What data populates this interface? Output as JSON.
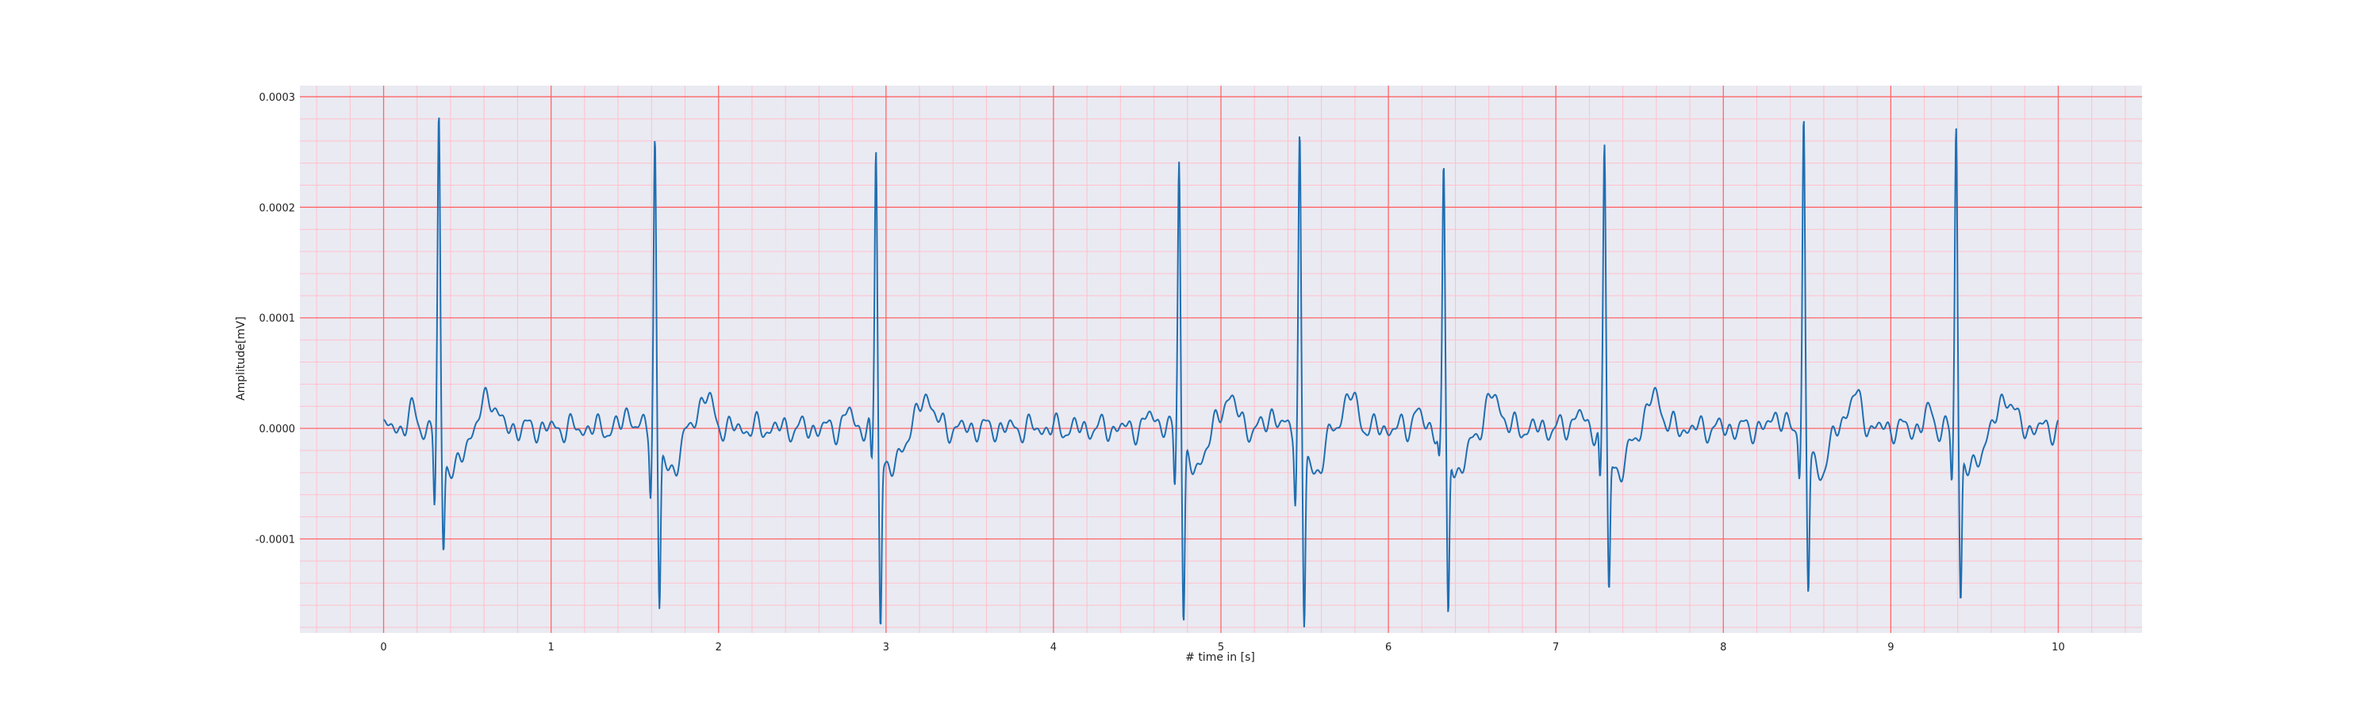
{
  "chart_data": {
    "type": "line",
    "title": "",
    "xlabel": "# time in [s]",
    "ylabel": "Amplitude[mV]",
    "xlim": [
      -0.5,
      10.5
    ],
    "ylim": [
      -0.000185,
      0.00031
    ],
    "xticks": [
      0,
      1,
      2,
      3,
      4,
      5,
      6,
      7,
      8,
      9,
      10
    ],
    "xtick_labels": [
      "0",
      "1",
      "2",
      "3",
      "4",
      "5",
      "6",
      "7",
      "8",
      "9",
      "10"
    ],
    "yticks": [
      -0.0001,
      0.0,
      0.0001,
      0.0002,
      0.0003
    ],
    "ytick_labels": [
      "-0.0001",
      "0.0000",
      "0.0001",
      "0.0002",
      "0.0003"
    ],
    "grid": "major and minor",
    "colors": {
      "plot_background": "#eaeaf2",
      "major_grid": "#ff6666",
      "minor_grid": "#ffc0cb",
      "line": "#1f6fb2"
    },
    "series": [
      {
        "beats": [
          {
            "t": 0.33,
            "r": 0.000285,
            "q": -6.5e-05,
            "s": -9e-05
          },
          {
            "t": 1.62,
            "r": 0.00027,
            "q": -5e-05,
            "s": -0.000145
          },
          {
            "t": 2.94,
            "r": 0.00026,
            "q": -3.5e-05,
            "s": -0.000155
          },
          {
            "t": 4.75,
            "r": 0.000257,
            "q": -5e-05,
            "s": -0.000153
          },
          {
            "t": 5.47,
            "r": 0.00027,
            "q": -5.5e-05,
            "s": -0.000163
          },
          {
            "t": 6.33,
            "r": 0.00024,
            "q": -2.5e-05,
            "s": -0.000155
          },
          {
            "t": 7.29,
            "r": 0.000262,
            "q": -5e-05,
            "s": -0.00013
          },
          {
            "t": 8.48,
            "r": 0.000287,
            "q": -3.7e-05,
            "s": -0.000127
          },
          {
            "t": 9.39,
            "r": 0.00028,
            "q": -4.5e-05,
            "s": -0.000135
          }
        ],
        "t_start": 0.0,
        "t_end": 10.0
      }
    ]
  }
}
